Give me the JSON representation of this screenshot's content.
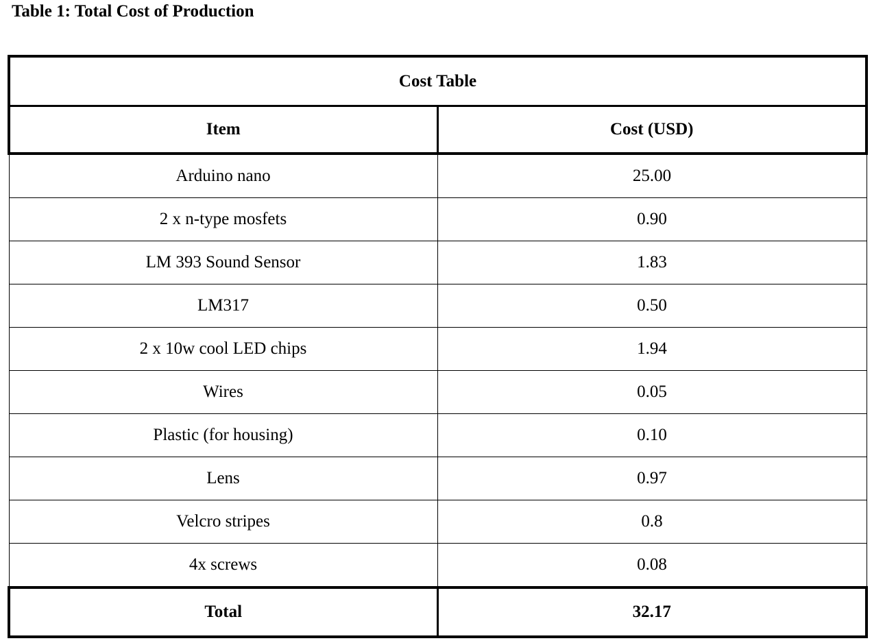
{
  "caption": "Table 1: Total Cost of Production",
  "table": {
    "title": "Cost Table",
    "headers": [
      "Item",
      "Cost (USD)"
    ],
    "rows": [
      {
        "item": "Arduino nano",
        "cost": "25.00"
      },
      {
        "item": "2 x n-type mosfets",
        "cost": "0.90"
      },
      {
        "item": "LM 393 Sound Sensor",
        "cost": "1.83"
      },
      {
        "item": "LM317",
        "cost": "0.50"
      },
      {
        "item": "2 x 10w cool LED chips",
        "cost": "1.94"
      },
      {
        "item": "Wires",
        "cost": "0.05"
      },
      {
        "item": "Plastic (for housing)",
        "cost": "0.10"
      },
      {
        "item": "Lens",
        "cost": "0.97"
      },
      {
        "item": "Velcro stripes",
        "cost": "0.8"
      },
      {
        "item": "4x screws",
        "cost": "0.08"
      }
    ],
    "total": {
      "label": "Total",
      "value": "32.17"
    }
  }
}
